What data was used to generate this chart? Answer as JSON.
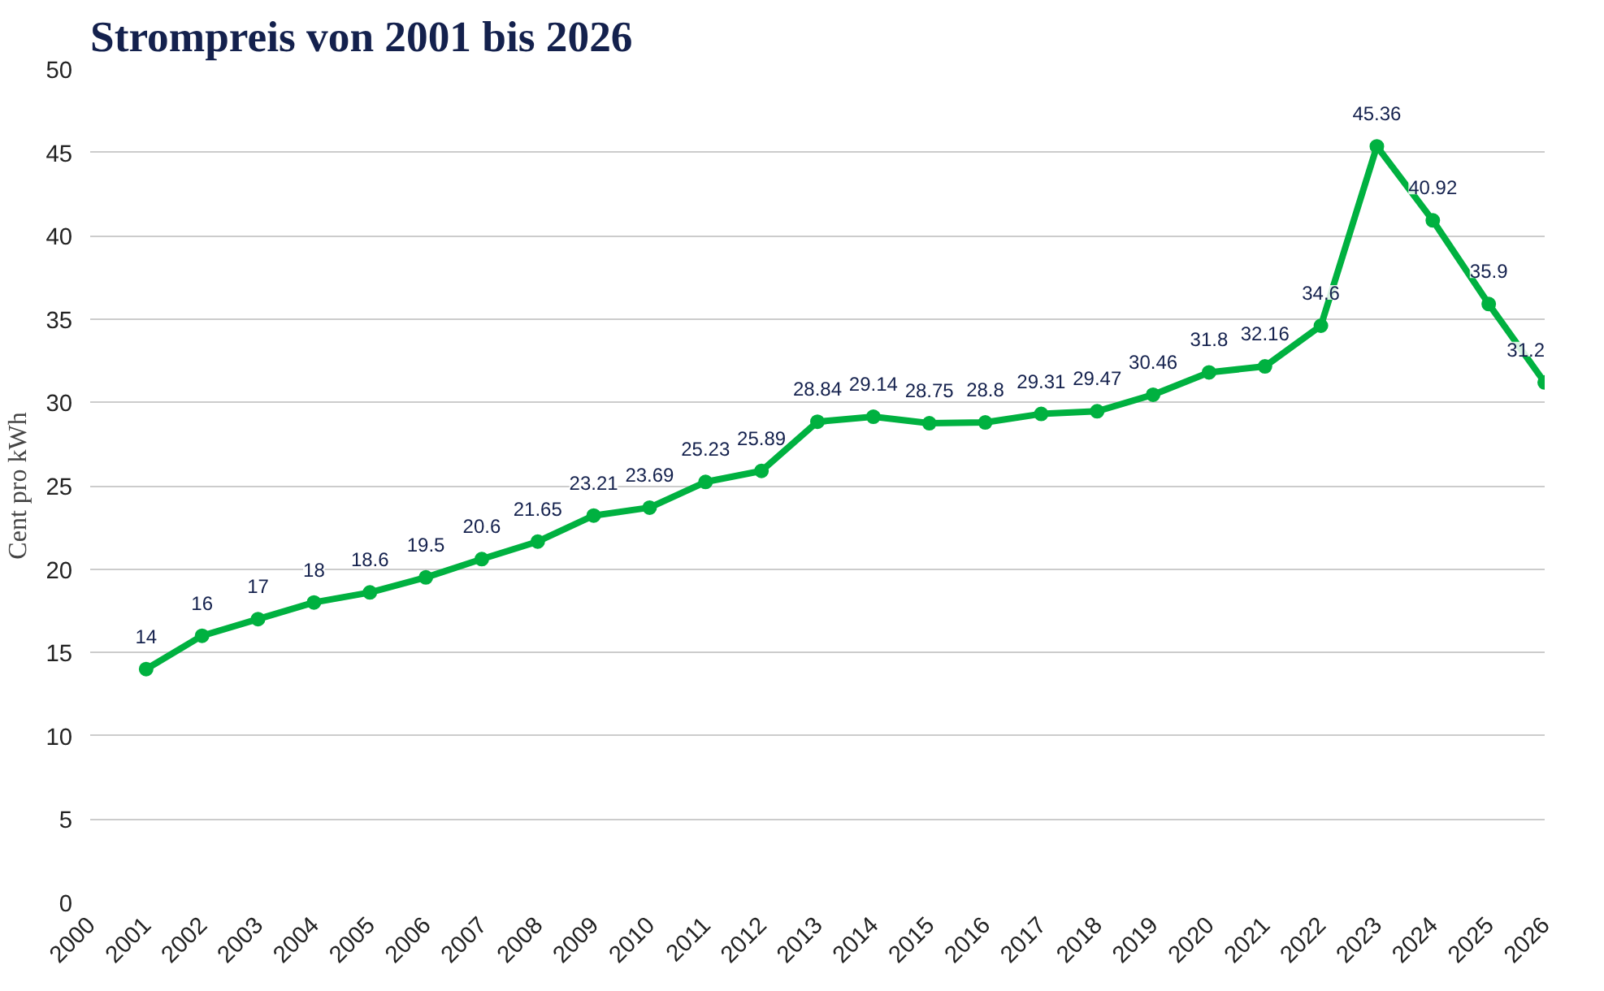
{
  "chart_data": {
    "type": "line",
    "title": "Strompreis von 2001 bis 2026",
    "ylabel": "Cent pro kWh",
    "x": [
      2001,
      2002,
      2003,
      2004,
      2005,
      2006,
      2007,
      2008,
      2009,
      2010,
      2011,
      2012,
      2013,
      2014,
      2015,
      2016,
      2017,
      2018,
      2019,
      2020,
      2021,
      2022,
      2023,
      2024,
      2025,
      2026
    ],
    "series": [
      {
        "color": "#00b140",
        "values": [
          14,
          16,
          17,
          18,
          18.6,
          19.5,
          20.6,
          21.65,
          23.21,
          23.69,
          25.23,
          25.89,
          28.84,
          29.14,
          28.75,
          28.8,
          29.31,
          29.47,
          30.46,
          31.8,
          32.16,
          34.6,
          45.36,
          40.92,
          35.9,
          31.2
        ]
      }
    ],
    "xlim": [
      2000,
      2026
    ],
    "xticks": [
      2000,
      2001,
      2002,
      2003,
      2004,
      2005,
      2006,
      2007,
      2008,
      2009,
      2010,
      2011,
      2012,
      2013,
      2014,
      2015,
      2016,
      2017,
      2018,
      2019,
      2020,
      2021,
      2022,
      2023,
      2024,
      2025,
      2026
    ],
    "ylim": [
      0,
      50
    ],
    "yticks": [
      0,
      5,
      10,
      15,
      20,
      25,
      30,
      35,
      40,
      45,
      50
    ],
    "grid": "y",
    "marker": "circle",
    "line_style": "solid",
    "data_labels": true
  }
}
